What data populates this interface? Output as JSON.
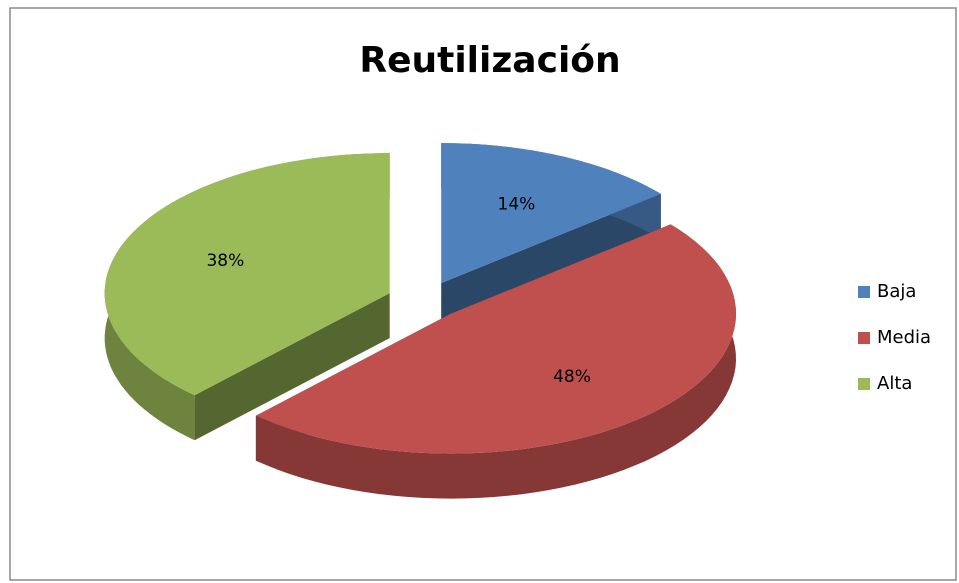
{
  "chart_data": {
    "type": "pie3d",
    "title": "Reutilización",
    "categories": [
      "Baja",
      "Media",
      "Alta"
    ],
    "values": [
      14,
      48,
      38
    ],
    "value_labels": [
      "14%",
      "48%",
      "38%"
    ],
    "colors": [
      "#4f81bd",
      "#c0504d",
      "#9bbb59"
    ],
    "legend": "right"
  }
}
